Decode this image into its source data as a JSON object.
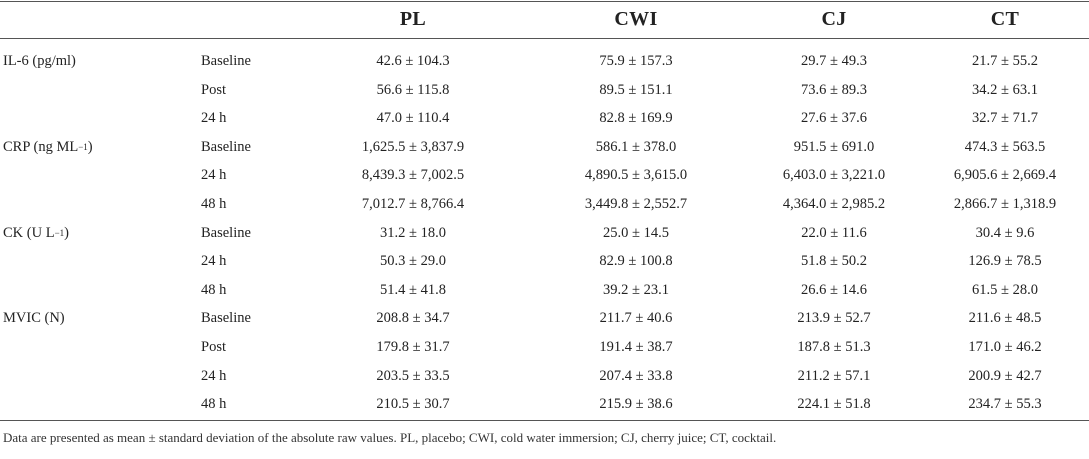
{
  "columns": [
    "PL",
    "CWI",
    "CJ",
    "CT"
  ],
  "rows": [
    {
      "measure": "IL-6 (pg/ml)",
      "time": "Baseline",
      "values": [
        "42.6 ± 104.3",
        "75.9 ± 157.3",
        "29.7 ± 49.3",
        "21.7 ± 55.2"
      ]
    },
    {
      "measure": "",
      "time": "Post",
      "values": [
        "56.6 ± 115.8",
        "89.5 ± 151.1",
        "73.6 ± 89.3",
        "34.2 ± 63.1"
      ]
    },
    {
      "measure": "",
      "time": "24 h",
      "values": [
        "47.0 ± 110.4",
        "82.8 ± 169.9",
        "27.6 ± 37.6",
        "32.7 ± 71.7"
      ]
    },
    {
      "measure": "CRP (ng ML−1)",
      "time": "Baseline",
      "values": [
        "1,625.5 ± 3,837.9",
        "586.1 ± 378.0",
        "951.5 ± 691.0",
        "474.3 ± 563.5"
      ]
    },
    {
      "measure": "",
      "time": "24 h",
      "values": [
        "8,439.3 ± 7,002.5",
        "4,890.5 ± 3,615.0",
        "6,403.0 ± 3,221.0",
        "6,905.6 ± 2,669.4"
      ]
    },
    {
      "measure": "",
      "time": "48 h",
      "values": [
        "7,012.7 ± 8,766.4",
        "3,449.8 ± 2,552.7",
        "4,364.0 ± 2,985.2",
        "2,866.7 ± 1,318.9"
      ]
    },
    {
      "measure": "CK (U L−1)",
      "time": "Baseline",
      "values": [
        "31.2 ± 18.0",
        "25.0 ± 14.5",
        "22.0 ± 11.6",
        "30.4 ± 9.6"
      ]
    },
    {
      "measure": "",
      "time": "24 h",
      "values": [
        "50.3 ± 29.0",
        "82.9 ± 100.8",
        "51.8 ± 50.2",
        "126.9 ± 78.5"
      ]
    },
    {
      "measure": "",
      "time": "48 h",
      "values": [
        "51.4 ± 41.8",
        "39.2 ± 23.1",
        "26.6 ± 14.6",
        "61.5 ± 28.0"
      ]
    },
    {
      "measure": "MVIC (N)",
      "time": "Baseline",
      "values": [
        "208.8 ± 34.7",
        "211.7 ± 40.6",
        "213.9 ± 52.7",
        "211.6 ± 48.5"
      ]
    },
    {
      "measure": "",
      "time": "Post",
      "values": [
        "179.8 ± 31.7",
        "191.4 ± 38.7",
        "187.8 ± 51.3",
        "171.0 ± 46.2"
      ]
    },
    {
      "measure": "",
      "time": "24 h",
      "values": [
        "203.5 ± 33.5",
        "207.4 ± 33.8",
        "211.2 ± 57.1",
        "200.9 ± 42.7"
      ]
    },
    {
      "measure": "",
      "time": "48 h",
      "values": [
        "210.5 ± 30.7",
        "215.9 ± 38.6",
        "224.1 ± 51.8",
        "234.7 ± 55.3"
      ]
    }
  ],
  "footnote": "Data are presented as mean ± standard deviation of the absolute raw values. PL, placebo; CWI, cold water immersion; CJ, cherry juice; CT, cocktail."
}
